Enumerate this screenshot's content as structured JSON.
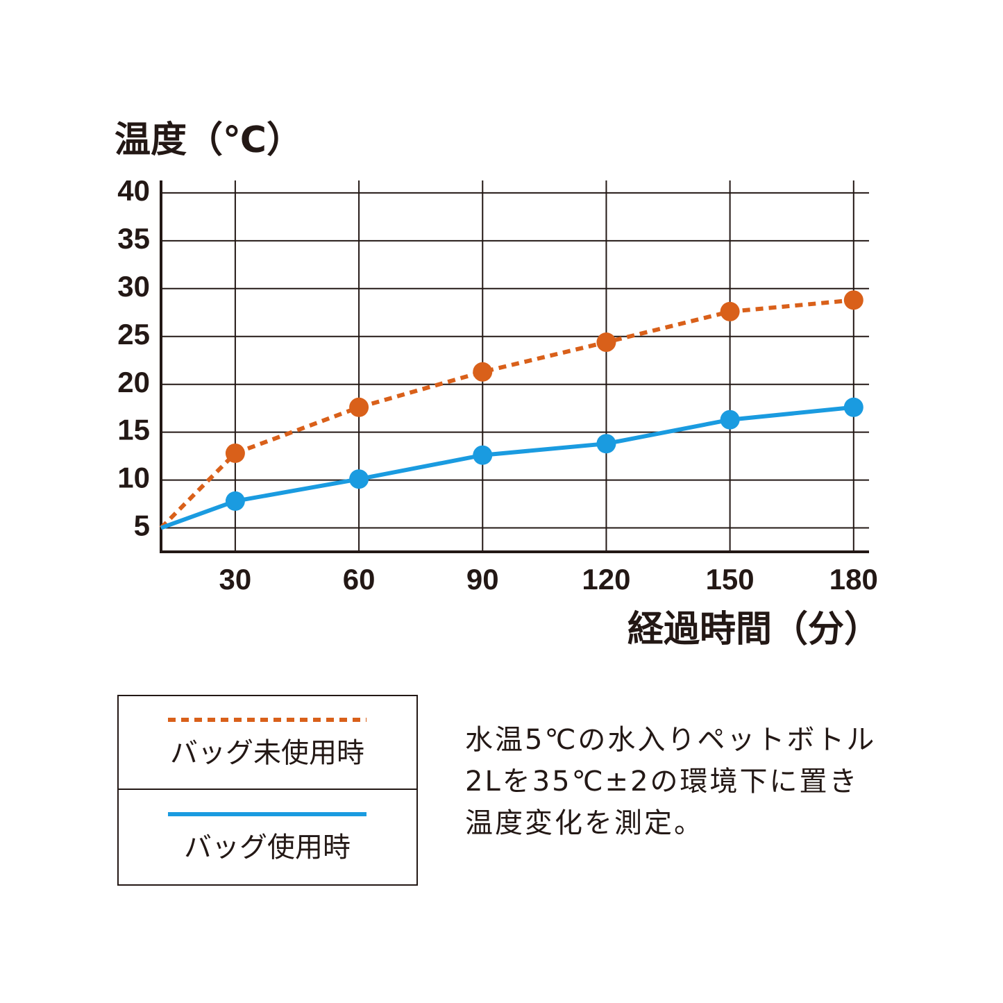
{
  "chart_data": {
    "type": "line",
    "y_label": "温度（℃）",
    "x_label": "経過時間（分）",
    "x": [
      12,
      30,
      60,
      90,
      120,
      150,
      180
    ],
    "series": [
      {
        "name": "バッグ未使用時",
        "color": "#d9601a",
        "style": "dotted",
        "values": [
          5,
          12.8,
          17.6,
          21.3,
          24.4,
          27.6,
          28.8
        ]
      },
      {
        "name": "バッグ使用時",
        "color": "#1a9be0",
        "style": "solid",
        "values": [
          5,
          7.8,
          10.1,
          12.6,
          13.8,
          16.3,
          17.6
        ]
      }
    ],
    "xlim": [
      12,
      183.4
    ],
    "ylim": [
      2.5,
      41.3
    ],
    "xticks": [
      30,
      60,
      90,
      120,
      150,
      180
    ],
    "yticks": [
      5,
      10,
      15,
      20,
      25,
      30,
      35,
      40
    ],
    "grid": true,
    "note": [
      "水温5℃の水入りペットボトル",
      "2Lを35℃±2の環境下に置き",
      "温度変化を測定。"
    ]
  }
}
